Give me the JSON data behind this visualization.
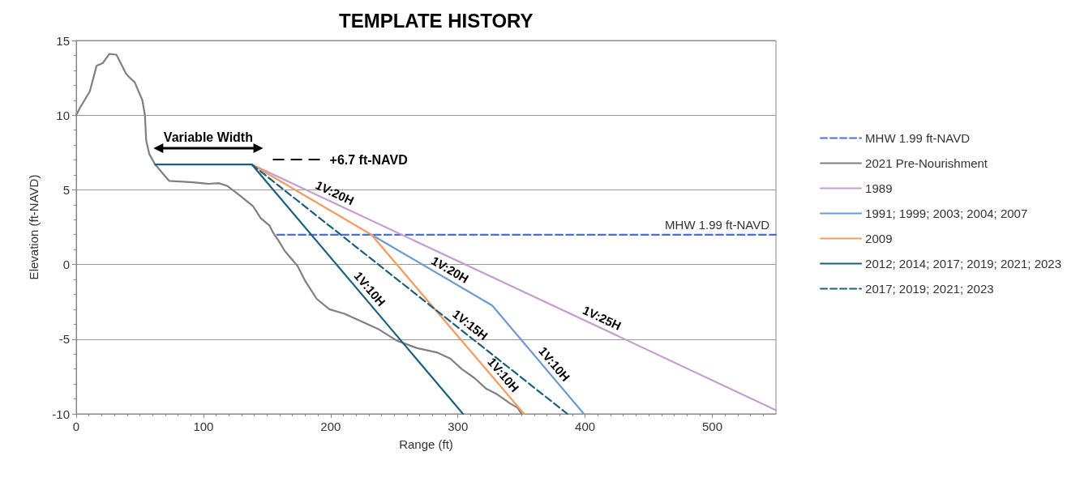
{
  "chart_data": {
    "type": "line",
    "title": "TEMPLATE HISTORY",
    "xlabel": "Range (ft)",
    "ylabel": "Elevation (ft-NAVD)",
    "xlim": [
      0,
      550
    ],
    "xticks": [
      0,
      100,
      200,
      300,
      400,
      500
    ],
    "ylim": [
      -10,
      15
    ],
    "yticks": [
      -10,
      -5,
      0,
      5,
      10,
      15
    ],
    "grid": "y",
    "legend": "right",
    "marker": "none",
    "series": [
      {
        "name": "MHW 1.99 ft-NAVD",
        "color": "#4a6ee8",
        "line_style": "dashed",
        "x": [
          158,
          550
        ],
        "values": [
          1.99,
          1.99
        ]
      },
      {
        "name": "2021 Pre-Nourishment",
        "color": "#808080",
        "line_style": "solid",
        "x": [
          0,
          3,
          10.7,
          16,
          21,
          26,
          31.6,
          39,
          41,
          46,
          52,
          54,
          55,
          57.4,
          62,
          69,
          73,
          92,
          104,
          112,
          119,
          129,
          139,
          145,
          152,
          155,
          159,
          164,
          174,
          180,
          189,
          199,
          211,
          224,
          237,
          252,
          268,
          284,
          294,
          303,
          313,
          322,
          331,
          341,
          347,
          350
        ],
        "values": [
          10,
          10.5,
          11.6,
          13.3,
          13.5,
          14.1,
          14.05,
          12.8,
          12.6,
          12.2,
          11,
          10,
          8.3,
          7.4,
          6.7,
          6,
          5.6,
          5.5,
          5.4,
          5.45,
          5.25,
          4.6,
          3.9,
          3.1,
          2.6,
          2.1,
          1.6,
          0.9,
          -0.1,
          -1.1,
          -2.3,
          -3,
          -3.3,
          -3.8,
          -4.3,
          -5.1,
          -5.6,
          -5.9,
          -6.3,
          -7,
          -7.6,
          -8.3,
          -8.7,
          -9.3,
          -9.6,
          -10
        ]
      },
      {
        "name": "1989",
        "color": "#c99bd3",
        "line_style": "solid",
        "x": [
          138,
          550
        ],
        "values": [
          6.7,
          -9.75
        ]
      },
      {
        "name": "1991; 1999; 2003; 2004; 2007",
        "color": "#6b9bd2",
        "line_style": "solid",
        "x": [
          232,
          327,
          399
        ],
        "values": [
          2,
          -2.75,
          -10
        ]
      },
      {
        "name": "2009",
        "color": "#f79a5c",
        "line_style": "solid",
        "x": [
          138,
          232,
          352
        ],
        "values": [
          6.7,
          2,
          -10
        ]
      },
      {
        "name": "2012; 2014; 2017; 2019; 2021; 2023",
        "color": "#1a617f",
        "line_style": "solid",
        "x": [
          62,
          138,
          304
        ],
        "values": [
          6.7,
          6.7,
          -10
        ]
      },
      {
        "name": "2017; 2019; 2021; 2023",
        "color": "#1a617f",
        "line_style": "dashed",
        "x": [
          138,
          386
        ],
        "values": [
          6.7,
          -10
        ]
      }
    ],
    "annotations": [
      "Variable Width",
      "+6.7 ft-NAVD",
      {
        "text": "MHW 1.99 ft-NAVD",
        "x": 550,
        "y": 1.99
      },
      {
        "text": "1V:20H",
        "x": 200,
        "y": 4.22
      },
      {
        "text": "1V:20H",
        "x": 290,
        "y": -0.9
      },
      {
        "text": "1V:10H",
        "x": 225,
        "y": -2.05
      },
      {
        "text": "1V:15H",
        "x": 305,
        "y": -4.54
      },
      {
        "text": "1V:10H",
        "x": 330,
        "y": -7.8
      },
      {
        "text": "1V:10H",
        "x": 370,
        "y": -7.08
      },
      {
        "text": "1V:25H",
        "x": 410,
        "y": -4.16
      }
    ]
  }
}
